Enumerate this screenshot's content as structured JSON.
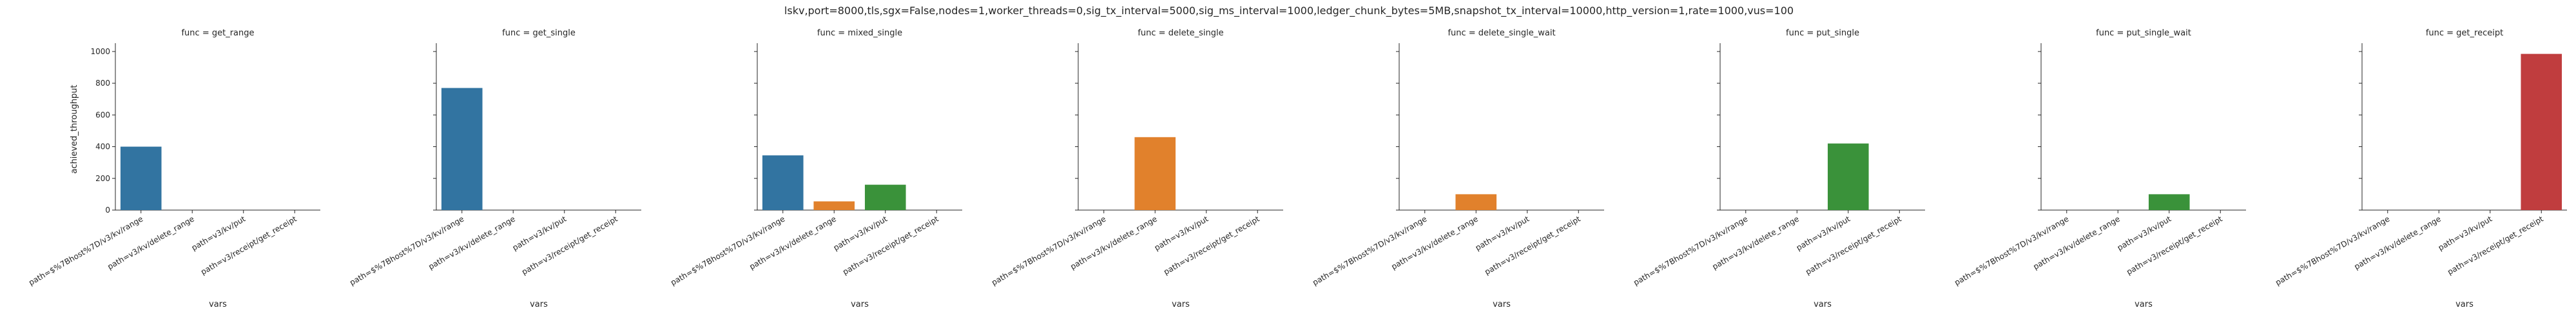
{
  "title": "lskv,port=8000,tls,sgx=False,nodes=1,worker_threads=0,sig_tx_interval=5000,sig_ms_interval=1000,ledger_chunk_bytes=5MB,snapshot_tx_interval=10000,http_version=1,rate=1000,vus=100",
  "colors": {
    "path=$%7Bhost%7D/v3/kv/range": "#3274a1",
    "path=v3/kv/delete_range": "#e1812c",
    "path=v3/kv/put": "#3a923a",
    "path=v3/receipt/get_receipt": "#c03d3e"
  },
  "chart_data": [
    {
      "type": "bar",
      "title": "func = get_range",
      "xlabel": "vars",
      "ylabel": "achieved_throughput",
      "ylim": [
        0,
        1020
      ],
      "yticks": [
        0,
        200,
        400,
        600,
        800,
        1000
      ],
      "categories": [
        "path=$%7Bhost%7D/v3/kv/range",
        "path=v3/kv/delete_range",
        "path=v3/kv/put",
        "path=v3/receipt/get_receipt"
      ],
      "values": [
        400,
        0,
        0,
        0
      ]
    },
    {
      "type": "bar",
      "title": "func = get_single",
      "xlabel": "vars",
      "ylabel": "",
      "ylim": [
        0,
        1020
      ],
      "yticks": [
        0,
        200,
        400,
        600,
        800,
        1000
      ],
      "categories": [
        "path=$%7Bhost%7D/v3/kv/range",
        "path=v3/kv/delete_range",
        "path=v3/kv/put",
        "path=v3/receipt/get_receipt"
      ],
      "values": [
        770,
        0,
        0,
        0
      ]
    },
    {
      "type": "bar",
      "title": "func = mixed_single",
      "xlabel": "vars",
      "ylabel": "",
      "ylim": [
        0,
        1020
      ],
      "yticks": [
        0,
        200,
        400,
        600,
        800,
        1000
      ],
      "categories": [
        "path=$%7Bhost%7D/v3/kv/range",
        "path=v3/kv/delete_range",
        "path=v3/kv/put",
        "path=v3/receipt/get_receipt"
      ],
      "values": [
        345,
        55,
        160,
        0
      ]
    },
    {
      "type": "bar",
      "title": "func = delete_single",
      "xlabel": "vars",
      "ylabel": "",
      "ylim": [
        0,
        1020
      ],
      "yticks": [
        0,
        200,
        400,
        600,
        800,
        1000
      ],
      "categories": [
        "path=$%7Bhost%7D/v3/kv/range",
        "path=v3/kv/delete_range",
        "path=v3/kv/put",
        "path=v3/receipt/get_receipt"
      ],
      "values": [
        0,
        460,
        0,
        0
      ]
    },
    {
      "type": "bar",
      "title": "func = delete_single_wait",
      "xlabel": "vars",
      "ylabel": "",
      "ylim": [
        0,
        1020
      ],
      "yticks": [
        0,
        200,
        400,
        600,
        800,
        1000
      ],
      "categories": [
        "path=$%7Bhost%7D/v3/kv/range",
        "path=v3/kv/delete_range",
        "path=v3/kv/put",
        "path=v3/receipt/get_receipt"
      ],
      "values": [
        0,
        100,
        0,
        0
      ]
    },
    {
      "type": "bar",
      "title": "func = put_single",
      "xlabel": "vars",
      "ylabel": "",
      "ylim": [
        0,
        1020
      ],
      "yticks": [
        0,
        200,
        400,
        600,
        800,
        1000
      ],
      "categories": [
        "path=$%7Bhost%7D/v3/kv/range",
        "path=v3/kv/delete_range",
        "path=v3/kv/put",
        "path=v3/receipt/get_receipt"
      ],
      "values": [
        0,
        0,
        420,
        0
      ]
    },
    {
      "type": "bar",
      "title": "func = put_single_wait",
      "xlabel": "vars",
      "ylabel": "",
      "ylim": [
        0,
        1020
      ],
      "yticks": [
        0,
        200,
        400,
        600,
        800,
        1000
      ],
      "categories": [
        "path=$%7Bhost%7D/v3/kv/range",
        "path=v3/kv/delete_range",
        "path=v3/kv/put",
        "path=v3/receipt/get_receipt"
      ],
      "values": [
        0,
        0,
        100,
        0
      ]
    },
    {
      "type": "bar",
      "title": "func = get_receipt",
      "xlabel": "vars",
      "ylabel": "",
      "ylim": [
        0,
        1020
      ],
      "yticks": [
        0,
        200,
        400,
        600,
        800,
        1000
      ],
      "categories": [
        "path=$%7Bhost%7D/v3/kv/range",
        "path=v3/kv/delete_range",
        "path=v3/kv/put",
        "path=v3/receipt/get_receipt"
      ],
      "values": [
        0,
        0,
        0,
        985
      ]
    }
  ]
}
